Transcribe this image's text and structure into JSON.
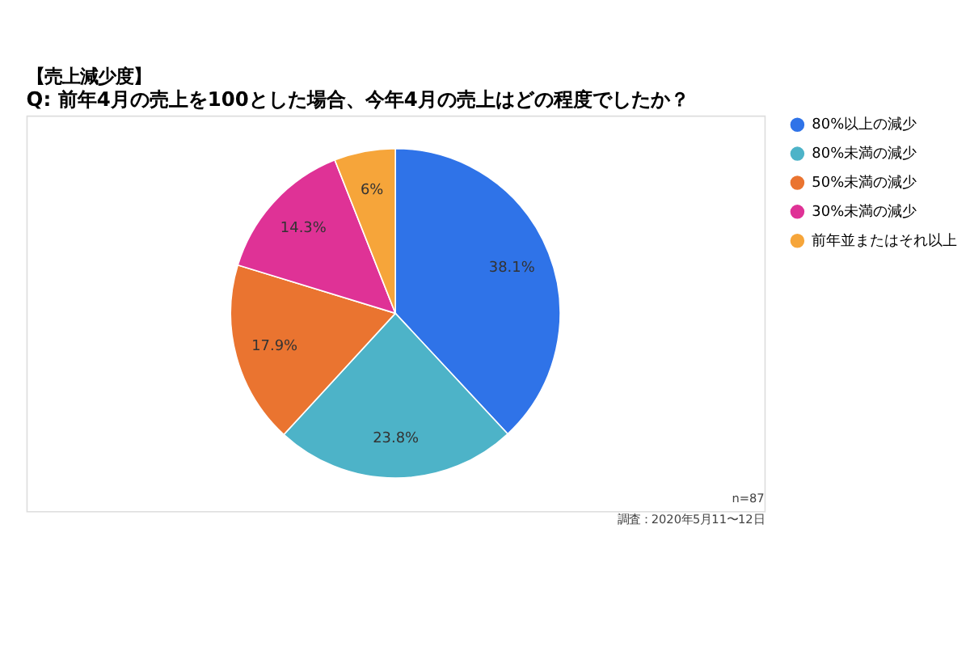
{
  "chart_data": {
    "type": "pie",
    "title": "【売上減少度】",
    "subtitle": "Q: 前年4月の売上を100とした場合、今年4月の売上はどの程度でしたか？",
    "categories": [
      "80%以上の減少",
      "80%未満の減少",
      "50%未満の減少",
      "30%未満の減少",
      "前年並またはそれ以上"
    ],
    "values": [
      38.1,
      23.8,
      17.9,
      14.3,
      6
    ],
    "colors": [
      "#2f73e8",
      "#4db3c8",
      "#ea7430",
      "#df3296",
      "#f6a53a"
    ],
    "value_labels": [
      "38.1%",
      "23.8%",
      "17.9%",
      "14.3%",
      "6%"
    ],
    "legend": "right",
    "annotations": [
      "n=87",
      "調査：2020年5月11〜12日"
    ]
  }
}
